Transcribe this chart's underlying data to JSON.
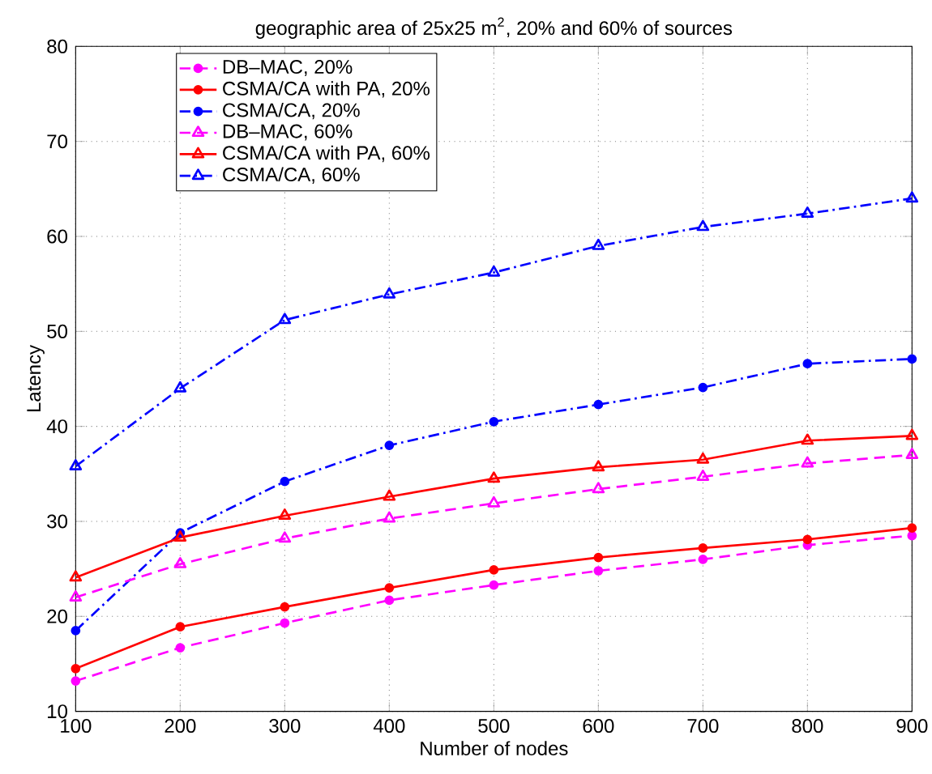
{
  "chart_data": {
    "type": "line",
    "title": "geographic area of 25x25 m$^{2}$, 20% and 60% of sources",
    "xlabel": "Number of nodes",
    "ylabel": "Latency",
    "x": [
      100,
      200,
      300,
      400,
      500,
      600,
      700,
      800,
      900
    ],
    "series": [
      {
        "name": "DB–MAC, 20%",
        "color": "#ff00ff",
        "marker": "circle",
        "line_style": "dashed",
        "values": [
          13.2,
          16.7,
          19.3,
          21.7,
          23.3,
          24.8,
          26,
          27.5,
          28.5
        ]
      },
      {
        "name": "CSMA/CA with PA, 20%",
        "color": "#ff0000",
        "marker": "circle",
        "line_style": "solid",
        "values": [
          14.5,
          18.9,
          21,
          23,
          24.9,
          26.2,
          27.2,
          28.1,
          29.3
        ]
      },
      {
        "name": "CSMA/CA, 20%",
        "color": "#0000ff",
        "marker": "circle",
        "line_style": "dashdot",
        "values": [
          18.5,
          28.8,
          34.2,
          38,
          40.5,
          42.3,
          44.1,
          46.6,
          47.1
        ]
      },
      {
        "name": "DB–MAC, 60%",
        "color": "#ff00ff",
        "marker": "triangle",
        "line_style": "dashed",
        "values": [
          22,
          25.5,
          28.2,
          30.3,
          31.9,
          33.4,
          34.7,
          36.1,
          37
        ]
      },
      {
        "name": "CSMA/CA with PA, 60%",
        "color": "#ff0000",
        "marker": "triangle",
        "line_style": "solid",
        "values": [
          24.1,
          28.3,
          30.6,
          32.6,
          34.5,
          35.7,
          36.5,
          38.5,
          39
        ]
      },
      {
        "name": "CSMA/CA, 60%",
        "color": "#0000ff",
        "marker": "triangle",
        "line_style": "dashdot",
        "values": [
          35.8,
          44,
          51.2,
          53.9,
          56.2,
          59,
          61,
          62.4,
          64
        ]
      }
    ],
    "xlim": [
      100,
      900
    ],
    "ylim": [
      10,
      80
    ],
    "xticks": [
      100,
      200,
      300,
      400,
      500,
      600,
      700,
      800,
      900
    ],
    "yticks": [
      10,
      20,
      30,
      40,
      50,
      60,
      70,
      80
    ],
    "grid": true,
    "legend": "top left"
  }
}
